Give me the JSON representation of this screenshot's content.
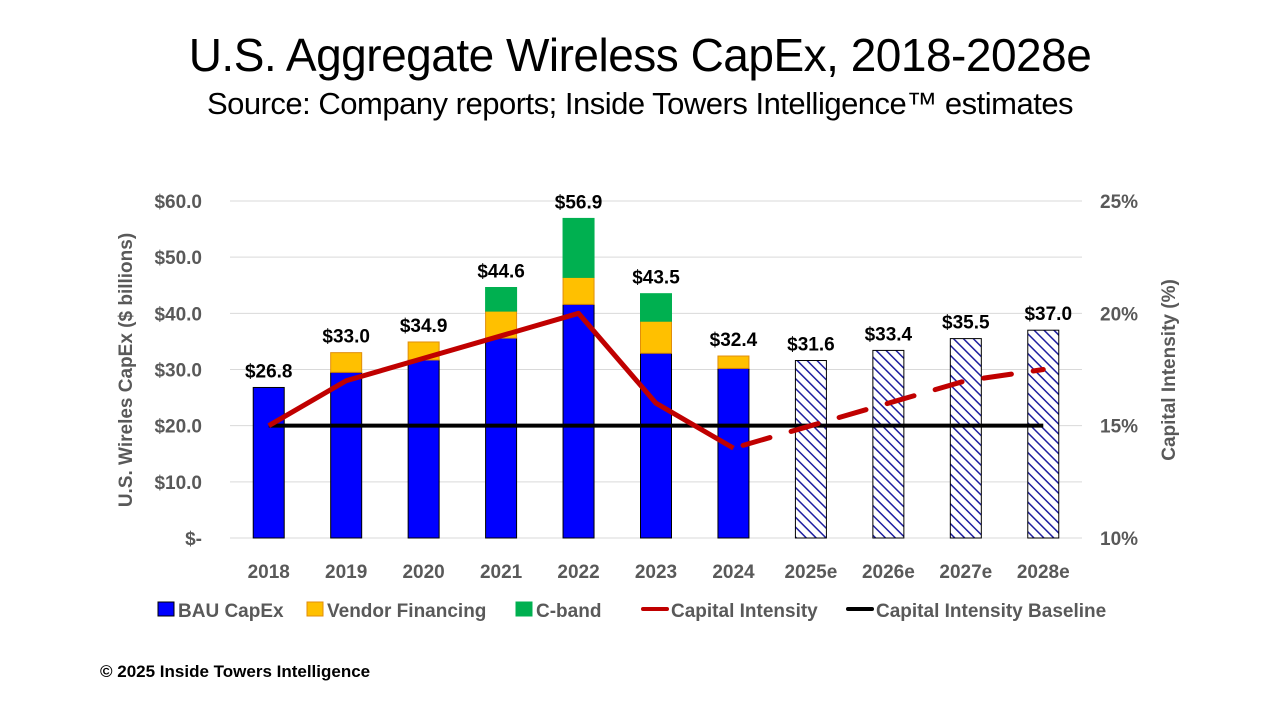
{
  "title": "U.S. Aggregate Wireless CapEx, 2018-2028e",
  "subtitle": "Source: Company reports; Inside Towers Intelligence™ estimates",
  "copyright": "© 2025 Inside Towers Intelligence",
  "colors": {
    "bau": "#0000FF",
    "vendor": "#FFC000",
    "cband": "#00B050",
    "intensity": "#C00000",
    "baseline": "#000000",
    "forecast_hatch": "#1F1FA0",
    "grid": "#D9D9D9",
    "axis_text": "#595959"
  },
  "chart_data": {
    "type": "bar",
    "title": "U.S. Aggregate Wireless CapEx, 2018-2028e",
    "categories": [
      "2018",
      "2019",
      "2020",
      "2021",
      "2022",
      "2023",
      "2024",
      "2025e",
      "2026e",
      "2027e",
      "2028e"
    ],
    "forecast_start_index": 7,
    "series": [
      {
        "name": "BAU CapEx",
        "kind": "stacked-bar",
        "axis": "left",
        "values": [
          26.8,
          29.5,
          31.7,
          35.6,
          41.6,
          32.9,
          30.2,
          31.6,
          33.4,
          35.5,
          37.0
        ]
      },
      {
        "name": "Vendor Financing",
        "kind": "stacked-bar",
        "axis": "left",
        "values": [
          0,
          3.5,
          3.2,
          4.8,
          4.8,
          5.7,
          2.2,
          0,
          0,
          0,
          0
        ]
      },
      {
        "name": "C-band",
        "kind": "stacked-bar",
        "axis": "left",
        "values": [
          0,
          0,
          0,
          4.2,
          10.5,
          4.9,
          0,
          0,
          0,
          0,
          0
        ]
      },
      {
        "name": "Capital Intensity",
        "kind": "line",
        "axis": "right",
        "values": [
          15.0,
          17.0,
          18.0,
          19.0,
          20.0,
          16.0,
          14.0,
          15.0,
          16.0,
          17.0,
          17.5
        ],
        "dashed_from_index": 6
      },
      {
        "name": "Capital Intensity Baseline",
        "kind": "line",
        "axis": "right",
        "values": [
          15,
          15,
          15,
          15,
          15,
          15,
          15,
          15,
          15,
          15,
          15
        ]
      }
    ],
    "totals_labels": [
      "$26.8",
      "$33.0",
      "$34.9",
      "$44.6",
      "$56.9",
      "$43.5",
      "$32.4",
      "$31.6",
      "$33.4",
      "$35.5",
      "$37.0"
    ],
    "ylabel": "U.S. Wireles CapEx ($ billions)",
    "ylabel_right": "Capital Intensity (%)",
    "ylim": [
      0,
      60
    ],
    "ylim_right": [
      10,
      25
    ],
    "yticks": [
      0,
      10,
      20,
      30,
      40,
      50,
      60
    ],
    "ytick_labels": [
      "$-",
      "$10.0",
      "$20.0",
      "$30.0",
      "$40.0",
      "$50.0",
      "$60.0"
    ],
    "yticks_right": [
      10,
      15,
      20,
      25
    ],
    "ytick_labels_right": [
      "10%",
      "15%",
      "20%",
      "25%"
    ],
    "grid": true,
    "legend_position": "bottom",
    "legend": [
      "BAU CapEx",
      "Vendor Financing",
      "C-band",
      "Capital Intensity",
      "Capital Intensity Baseline"
    ]
  }
}
